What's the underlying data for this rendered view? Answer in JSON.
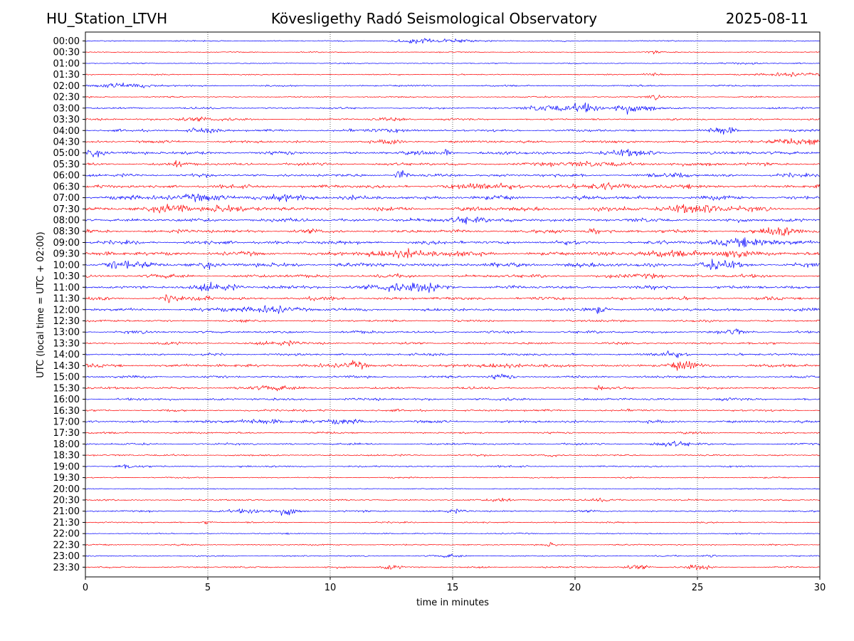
{
  "header": {
    "station": "HU_Station_LTVH",
    "observatory": "Kövesligethy Radó Seismological Observatory",
    "date": "2025-08-11"
  },
  "chart_data": {
    "type": "line",
    "xlabel": "time in minutes",
    "ylabel": "UTC (local time = UTC + 02:00)",
    "xlim": [
      0,
      30
    ],
    "x_ticks": [
      "0",
      "5",
      "10",
      "15",
      "20",
      "25",
      "30"
    ],
    "x_tick_values": [
      0,
      5,
      10,
      15,
      20,
      25,
      30
    ],
    "grid": "vertical dotted at 5-minute intervals",
    "row_colors": [
      "#0000ff",
      "#ff0000"
    ],
    "rows": [
      {
        "label": "00:00",
        "noise": 1.0,
        "events": [
          [
            13.5,
            1.2,
            2.5
          ],
          [
            15.2,
            1.5,
            2.0
          ]
        ]
      },
      {
        "label": "00:30",
        "noise": 0.9,
        "events": [
          [
            23.2,
            0.5,
            2.0
          ]
        ]
      },
      {
        "label": "01:00",
        "noise": 0.9,
        "events": [
          [
            27.0,
            1.0,
            1.5
          ]
        ]
      },
      {
        "label": "01:30",
        "noise": 1.0,
        "events": [
          [
            23.2,
            0.5,
            3.0
          ],
          [
            28.8,
            1.3,
            3.0
          ]
        ]
      },
      {
        "label": "02:00",
        "noise": 1.4,
        "events": [
          [
            1.5,
            1.4,
            3.5
          ]
        ]
      },
      {
        "label": "02:30",
        "noise": 1.2,
        "events": [
          [
            23.3,
            0.4,
            3.0
          ]
        ]
      },
      {
        "label": "03:00",
        "noise": 1.6,
        "events": [
          [
            18.8,
            1.0,
            4.5
          ],
          [
            20.5,
            0.7,
            7.0
          ],
          [
            22.0,
            0.6,
            7.0
          ],
          [
            23.0,
            0.5,
            4.5
          ]
        ]
      },
      {
        "label": "03:30",
        "noise": 1.6,
        "events": [
          [
            4.5,
            1.5,
            2.5
          ],
          [
            12.5,
            1.0,
            2.0
          ]
        ]
      },
      {
        "label": "04:00",
        "noise": 2.0,
        "events": [
          [
            4.8,
            0.7,
            3.5
          ],
          [
            12.5,
            1.0,
            2.5
          ],
          [
            26.0,
            0.6,
            5.0
          ]
        ]
      },
      {
        "label": "04:30",
        "noise": 2.2,
        "events": [
          [
            12.5,
            0.4,
            4.0
          ],
          [
            29.0,
            1.2,
            4.5
          ]
        ]
      },
      {
        "label": "05:00",
        "noise": 2.8,
        "events": [
          [
            0.4,
            0.5,
            6.0
          ],
          [
            14.8,
            0.2,
            6.5
          ],
          [
            22.0,
            1.0,
            3.5
          ]
        ]
      },
      {
        "label": "05:30",
        "noise": 2.5,
        "events": [
          [
            3.8,
            0.2,
            5.0
          ],
          [
            20.5,
            1.5,
            3.5
          ],
          [
            25.5,
            0.6,
            3.0
          ]
        ]
      },
      {
        "label": "06:00",
        "noise": 2.6,
        "events": [
          [
            12.9,
            0.3,
            8.0
          ],
          [
            24.0,
            0.8,
            3.0
          ]
        ]
      },
      {
        "label": "06:30",
        "noise": 2.9,
        "events": [
          [
            16.5,
            1.5,
            4.0
          ],
          [
            21.5,
            2.0,
            3.0
          ]
        ]
      },
      {
        "label": "07:00",
        "noise": 3.2,
        "events": [
          [
            4.5,
            1.5,
            4.0
          ],
          [
            8.5,
            1.2,
            3.5
          ]
        ]
      },
      {
        "label": "07:30",
        "noise": 3.4,
        "events": [
          [
            3.5,
            0.8,
            6.5
          ],
          [
            5.5,
            0.8,
            6.0
          ],
          [
            25.0,
            1.5,
            6.5
          ]
        ]
      },
      {
        "label": "08:00",
        "noise": 3.0,
        "events": [
          [
            15.6,
            0.8,
            5.5
          ]
        ]
      },
      {
        "label": "08:30",
        "noise": 3.0,
        "events": [
          [
            20.7,
            0.3,
            4.0
          ],
          [
            28.5,
            1.2,
            4.5
          ]
        ]
      },
      {
        "label": "09:00",
        "noise": 3.0,
        "events": [
          [
            27.0,
            1.2,
            7.0
          ]
        ]
      },
      {
        "label": "09:30",
        "noise": 3.2,
        "events": [
          [
            13.2,
            1.8,
            5.0
          ],
          [
            23.5,
            1.0,
            5.0
          ],
          [
            26.5,
            0.8,
            6.0
          ]
        ]
      },
      {
        "label": "10:00",
        "noise": 3.6,
        "events": [
          [
            1.6,
            0.8,
            8.5
          ],
          [
            5.0,
            0.3,
            5.0
          ],
          [
            25.8,
            0.7,
            8.0
          ]
        ]
      },
      {
        "label": "10:30",
        "noise": 2.8,
        "events": [
          [
            23.0,
            0.6,
            3.5
          ]
        ]
      },
      {
        "label": "11:00",
        "noise": 2.8,
        "events": [
          [
            5.5,
            1.0,
            5.0
          ],
          [
            12.8,
            1.2,
            7.0
          ],
          [
            14.2,
            0.8,
            5.0
          ]
        ]
      },
      {
        "label": "11:30",
        "noise": 2.6,
        "events": [
          [
            3.5,
            0.3,
            5.0
          ],
          [
            4.8,
            0.3,
            5.5
          ]
        ]
      },
      {
        "label": "12:00",
        "noise": 2.5,
        "events": [
          [
            7.5,
            1.5,
            4.5
          ],
          [
            21.0,
            0.4,
            4.5
          ]
        ]
      },
      {
        "label": "12:30",
        "noise": 1.8,
        "events": []
      },
      {
        "label": "13:00",
        "noise": 2.2,
        "events": [
          [
            26.5,
            0.3,
            5.0
          ]
        ]
      },
      {
        "label": "13:30",
        "noise": 2.0,
        "events": [
          [
            8.0,
            0.8,
            3.0
          ]
        ]
      },
      {
        "label": "14:00",
        "noise": 2.0,
        "events": [
          [
            24.0,
            0.8,
            3.0
          ]
        ]
      },
      {
        "label": "14:30",
        "noise": 2.6,
        "events": [
          [
            11.0,
            0.6,
            6.0
          ],
          [
            17.0,
            0.8,
            4.0
          ],
          [
            24.5,
            0.6,
            6.0
          ]
        ]
      },
      {
        "label": "15:00",
        "noise": 2.0,
        "events": [
          [
            17.0,
            0.5,
            4.0
          ]
        ]
      },
      {
        "label": "15:30",
        "noise": 2.0,
        "events": [
          [
            8.0,
            1.0,
            3.0
          ],
          [
            21.0,
            0.2,
            3.5
          ]
        ]
      },
      {
        "label": "16:00",
        "noise": 2.2,
        "events": []
      },
      {
        "label": "16:30",
        "noise": 1.8,
        "events": []
      },
      {
        "label": "17:00",
        "noise": 2.2,
        "events": [
          [
            7.0,
            1.0,
            4.0
          ],
          [
            10.5,
            1.0,
            3.0
          ]
        ]
      },
      {
        "label": "17:30",
        "noise": 1.5,
        "events": []
      },
      {
        "label": "18:00",
        "noise": 1.7,
        "events": [
          [
            24.0,
            1.0,
            3.0
          ]
        ]
      },
      {
        "label": "18:30",
        "noise": 1.5,
        "events": [
          [
            19.0,
            0.3,
            3.0
          ]
        ]
      },
      {
        "label": "19:00",
        "noise": 1.4,
        "events": [
          [
            1.7,
            0.6,
            3.0
          ],
          [
            6.5,
            0.3,
            2.0
          ]
        ]
      },
      {
        "label": "19:30",
        "noise": 1.1,
        "events": []
      },
      {
        "label": "20:00",
        "noise": 0.9,
        "events": []
      },
      {
        "label": "20:30",
        "noise": 1.4,
        "events": [
          [
            17.0,
            0.6,
            3.0
          ],
          [
            21.0,
            0.6,
            2.5
          ]
        ]
      },
      {
        "label": "21:00",
        "noise": 1.5,
        "events": [
          [
            6.8,
            0.8,
            3.5
          ],
          [
            8.3,
            0.6,
            5.0
          ],
          [
            15.0,
            0.6,
            2.0
          ]
        ]
      },
      {
        "label": "21:30",
        "noise": 1.2,
        "events": [
          [
            5.0,
            0.3,
            2.5
          ]
        ]
      },
      {
        "label": "22:00",
        "noise": 1.1,
        "events": []
      },
      {
        "label": "22:30",
        "noise": 1.2,
        "events": [
          [
            19.0,
            0.3,
            3.0
          ]
        ]
      },
      {
        "label": "23:00",
        "noise": 1.1,
        "events": [
          [
            15.0,
            0.5,
            2.0
          ],
          [
            25.5,
            0.5,
            2.0
          ]
        ]
      },
      {
        "label": "23:30",
        "noise": 1.4,
        "events": [
          [
            12.5,
            0.5,
            3.0
          ],
          [
            22.5,
            0.6,
            3.0
          ],
          [
            25.0,
            0.6,
            3.0
          ]
        ]
      }
    ]
  }
}
